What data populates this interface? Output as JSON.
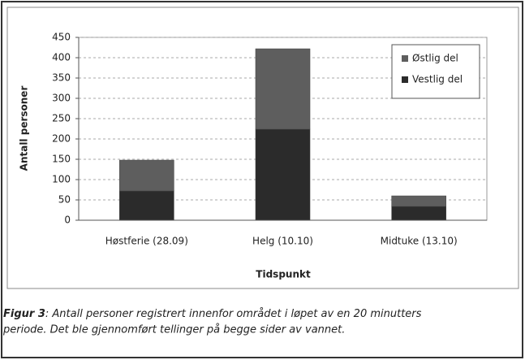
{
  "chart_data": {
    "type": "stacked_bar",
    "categories": [
      "Høstferie (28.09)",
      "Helg (10.10)",
      "Midtuke (13.10)"
    ],
    "series": [
      {
        "name": "Vestlig del",
        "color": "#2b2b2b",
        "values": [
          72,
          224,
          34
        ]
      },
      {
        "name": "Østlig del",
        "color": "#5e5e5e",
        "values": [
          76,
          198,
          26
        ]
      }
    ],
    "ylim": [
      0,
      450
    ],
    "yticks": [
      0,
      50,
      100,
      150,
      200,
      250,
      300,
      350,
      400,
      450
    ],
    "grid": true,
    "legend": "upper right",
    "x_label": "Tidspunkt",
    "y_label": "Antall personer"
  },
  "caption": {
    "label": "Figur 3",
    "text": ": Antall personer registrert innenfor området i løpet av en 20 minutters",
    "text2": "periode. Det ble gjennomført tellinger på begge sider av vannet."
  }
}
